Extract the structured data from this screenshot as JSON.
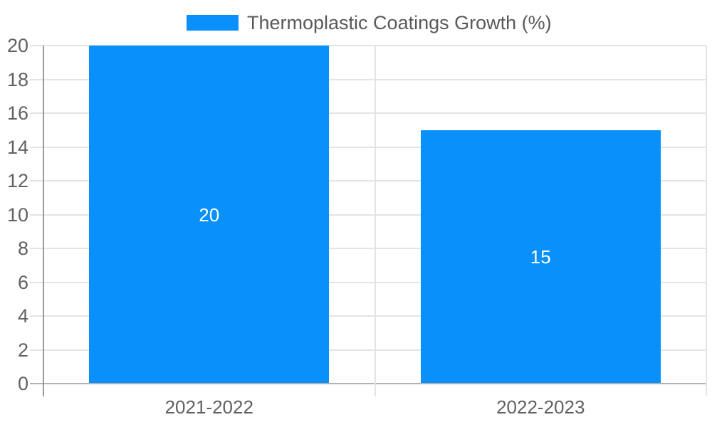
{
  "chart_data": {
    "type": "bar",
    "title": "",
    "legend": {
      "label": "Thermoplastic Coatings Growth (%)",
      "position": "top-center"
    },
    "categories": [
      "2021-2022",
      "2022-2023"
    ],
    "series": [
      {
        "name": "Thermoplastic Coatings Growth (%)",
        "values": [
          20,
          15
        ]
      }
    ],
    "data_labels": [
      "20",
      "15"
    ],
    "xlabel": "",
    "ylabel": "",
    "ylim": [
      0,
      20
    ],
    "yticks": [
      0,
      2,
      4,
      6,
      8,
      10,
      12,
      14,
      16,
      18,
      20
    ],
    "grid": true,
    "colors": {
      "bar": "#0990fa",
      "gridline": "#e4e4e4",
      "y_axis_line": "#999999",
      "x_axis_line": "#b2b2b2",
      "tick_label": "#616161",
      "legend_label": "#58595a",
      "data_label": "#ffffff",
      "background": "#ffffff"
    }
  }
}
